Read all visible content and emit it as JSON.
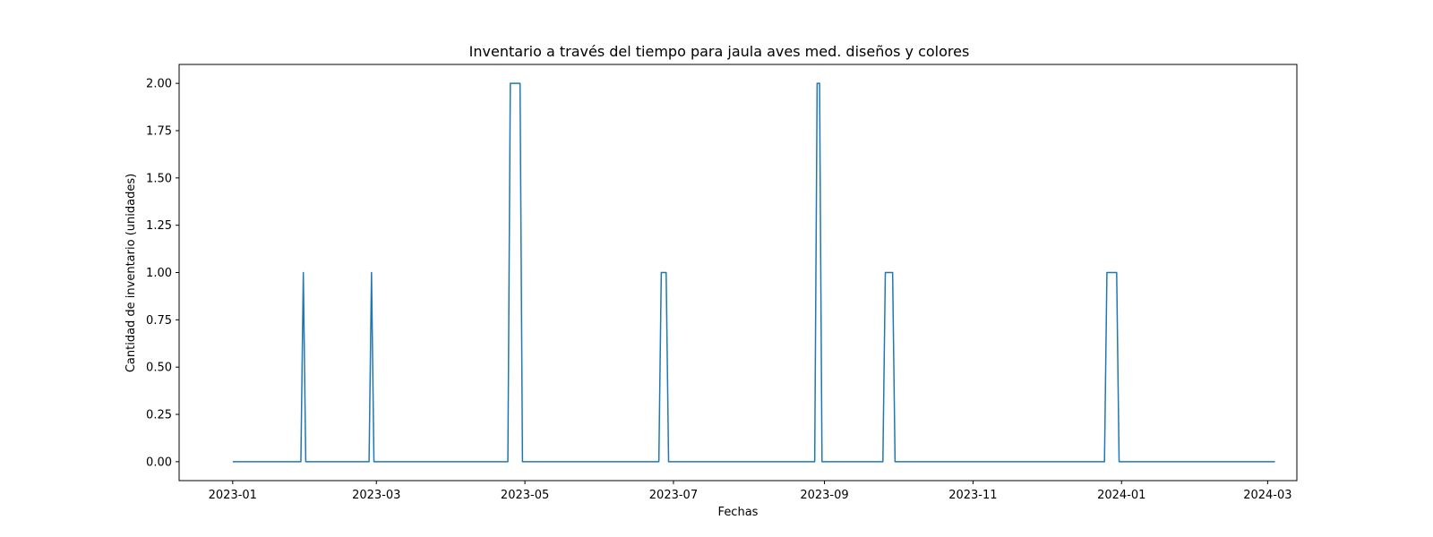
{
  "chart_data": {
    "type": "line",
    "title": "Inventario a través del tiempo para jaula aves med. diseños y colores",
    "xlabel": "Fechas",
    "ylabel": "Cantidad de inventario (unidades)",
    "xlim": [
      "2022-12-10",
      "2024-03-13"
    ],
    "ylim": [
      -0.1,
      2.1
    ],
    "grid": false,
    "xticks": [
      {
        "value": "2023-01-01",
        "label": "2023-01"
      },
      {
        "value": "2023-03-01",
        "label": "2023-03"
      },
      {
        "value": "2023-05-01",
        "label": "2023-05"
      },
      {
        "value": "2023-07-01",
        "label": "2023-07"
      },
      {
        "value": "2023-09-01",
        "label": "2023-09"
      },
      {
        "value": "2023-11-01",
        "label": "2023-11"
      },
      {
        "value": "2024-01-01",
        "label": "2024-01"
      },
      {
        "value": "2024-03-01",
        "label": "2024-03"
      }
    ],
    "yticks": [
      {
        "value": 0.0,
        "label": "0.00"
      },
      {
        "value": 0.25,
        "label": "0.25"
      },
      {
        "value": 0.5,
        "label": "0.50"
      },
      {
        "value": 0.75,
        "label": "0.75"
      },
      {
        "value": 1.0,
        "label": "1.00"
      },
      {
        "value": 1.25,
        "label": "1.25"
      },
      {
        "value": 1.5,
        "label": "1.50"
      },
      {
        "value": 1.75,
        "label": "1.75"
      },
      {
        "value": 2.0,
        "label": "2.00"
      }
    ],
    "series": [
      {
        "color": "#1f77b4",
        "x": [
          "2023-01-01",
          "2023-01-29",
          "2023-01-30",
          "2023-01-31",
          "2023-02-26",
          "2023-02-27",
          "2023-02-28",
          "2023-04-24",
          "2023-04-25",
          "2023-04-29",
          "2023-04-30",
          "2023-06-25",
          "2023-06-26",
          "2023-06-28",
          "2023-06-29",
          "2023-08-28",
          "2023-08-29",
          "2023-08-30",
          "2023-08-31",
          "2023-09-25",
          "2023-09-26",
          "2023-09-29",
          "2023-09-30",
          "2023-12-25",
          "2023-12-26",
          "2023-12-30",
          "2023-12-31",
          "2024-03-04"
        ],
        "y": [
          0,
          0,
          1,
          0,
          0,
          1,
          0,
          0,
          2,
          2,
          0,
          0,
          1,
          1,
          0,
          0,
          2,
          2,
          0,
          0,
          1,
          1,
          0,
          0,
          1,
          1,
          0,
          0
        ]
      }
    ]
  }
}
